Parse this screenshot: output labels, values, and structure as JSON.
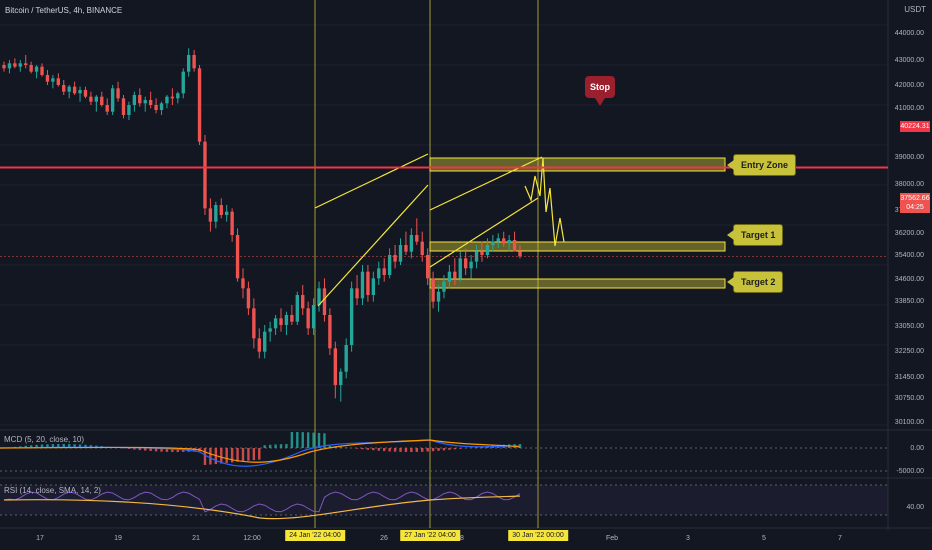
{
  "header": {
    "title": "Bitcoin / TetherUS, 4h, BINANCE",
    "currency": "USDT"
  },
  "price_axis": {
    "ticks": [
      "44000.00",
      "43000.00",
      "42000.00",
      "41000.00",
      "39000.00",
      "38000.00",
      "37000.00",
      "36200.00",
      "35400.00",
      "34600.00",
      "33850.00",
      "33050.00",
      "32250.00",
      "31450.00",
      "30750.00",
      "30100.00"
    ],
    "stop_level": "40224.31",
    "last_price": "37562.66",
    "countdown": "04:25"
  },
  "time_axis": {
    "ticks": [
      "17",
      "19",
      "21",
      "12:00",
      "26",
      "28",
      "Feb",
      "3",
      "5",
      "7"
    ],
    "highlighted": [
      "24 Jan '22  04:00",
      "27 Jan '22  04:00",
      "30 Jan '22  00:00"
    ]
  },
  "labels": {
    "stop": "Stop",
    "entry": "Entry Zone",
    "target1": "Target 1",
    "target2": "Target 2"
  },
  "indicators": {
    "macd_title": "MCD (5, 20, close, 10)",
    "macd_ticks": [
      "0.00",
      "-5000.00"
    ],
    "rsi_title": "RSI (14, close, SMA, 14, 2)",
    "rsi_ticks": [
      "40.00"
    ]
  },
  "colors": {
    "up": "#26a69a",
    "down": "#ef5350",
    "stop": "#f23645",
    "zone": "#f7e63a",
    "background": "#131722"
  },
  "chart_data": {
    "type": "candlestick",
    "title": "Bitcoin / TetherUS, 4h, BINANCE",
    "ylim": [
      32500,
      44500
    ],
    "candles": [
      [
        43300,
        43400,
        43100,
        43200
      ],
      [
        43200,
        43450,
        43050,
        43350
      ],
      [
        43350,
        43500,
        43200,
        43250
      ],
      [
        43250,
        43450,
        43100,
        43350
      ],
      [
        43350,
        43600,
        43200,
        43300
      ],
      [
        43300,
        43400,
        43050,
        43100
      ],
      [
        43100,
        43300,
        42900,
        43250
      ],
      [
        43250,
        43350,
        42950,
        43000
      ],
      [
        43000,
        43150,
        42700,
        42800
      ],
      [
        42800,
        43000,
        42600,
        42900
      ],
      [
        42900,
        43050,
        42650,
        42700
      ],
      [
        42700,
        42850,
        42400,
        42500
      ],
      [
        42500,
        42700,
        42300,
        42650
      ],
      [
        42650,
        42800,
        42400,
        42450
      ],
      [
        42450,
        42650,
        42200,
        42550
      ],
      [
        42550,
        42650,
        42300,
        42350
      ],
      [
        42350,
        42500,
        42100,
        42200
      ],
      [
        42200,
        42400,
        41900,
        42350
      ],
      [
        42350,
        42500,
        42050,
        42100
      ],
      [
        42100,
        42300,
        41800,
        41900
      ],
      [
        41900,
        42700,
        41800,
        42600
      ],
      [
        42600,
        42800,
        42200,
        42300
      ],
      [
        42300,
        42400,
        41700,
        41800
      ],
      [
        41800,
        42200,
        41650,
        42100
      ],
      [
        42100,
        42500,
        41900,
        42400
      ],
      [
        42400,
        42600,
        42050,
        42150
      ],
      [
        42150,
        42350,
        41900,
        42250
      ],
      [
        42250,
        42500,
        42000,
        42100
      ],
      [
        42100,
        42300,
        41850,
        41950
      ],
      [
        41950,
        42200,
        41800,
        42150
      ],
      [
        42150,
        42400,
        42000,
        42350
      ],
      [
        42350,
        42600,
        42100,
        42300
      ],
      [
        42300,
        42500,
        42150,
        42450
      ],
      [
        42450,
        43200,
        42300,
        43100
      ],
      [
        43100,
        43800,
        42950,
        43600
      ],
      [
        43600,
        43750,
        43100,
        43200
      ],
      [
        43200,
        43300,
        40900,
        41000
      ],
      [
        41000,
        41200,
        38800,
        39000
      ],
      [
        39000,
        39300,
        38300,
        38600
      ],
      [
        38600,
        39200,
        38400,
        39100
      ],
      [
        39100,
        39300,
        38700,
        38800
      ],
      [
        38800,
        39100,
        38600,
        38900
      ],
      [
        38900,
        39000,
        38000,
        38200
      ],
      [
        38200,
        38400,
        36800,
        36900
      ],
      [
        36900,
        37200,
        36300,
        36600
      ],
      [
        36600,
        36800,
        35800,
        36000
      ],
      [
        36000,
        36300,
        34800,
        35100
      ],
      [
        35100,
        35400,
        34500,
        34700
      ],
      [
        34700,
        35500,
        34500,
        35300
      ],
      [
        35300,
        35600,
        35000,
        35400
      ],
      [
        35400,
        35800,
        35200,
        35700
      ],
      [
        35700,
        36000,
        35300,
        35500
      ],
      [
        35500,
        35900,
        35200,
        35800
      ],
      [
        35800,
        36100,
        35500,
        35600
      ],
      [
        35600,
        36500,
        35500,
        36400
      ],
      [
        36400,
        36700,
        35800,
        36000
      ],
      [
        36000,
        36200,
        35200,
        35400
      ],
      [
        35400,
        36300,
        35200,
        36100
      ],
      [
        36100,
        36800,
        35900,
        36600
      ],
      [
        36600,
        36900,
        35600,
        35800
      ],
      [
        35800,
        36000,
        34600,
        34800
      ],
      [
        34800,
        35000,
        33300,
        33700
      ],
      [
        33700,
        34200,
        33200,
        34100
      ],
      [
        34100,
        35100,
        33900,
        34900
      ],
      [
        34900,
        36800,
        34700,
        36600
      ],
      [
        36600,
        37000,
        36100,
        36300
      ],
      [
        36300,
        37300,
        36100,
        37100
      ],
      [
        37100,
        37300,
        36200,
        36400
      ],
      [
        36400,
        37100,
        36200,
        36900
      ],
      [
        36900,
        37400,
        36700,
        37200
      ],
      [
        37200,
        37500,
        36800,
        37000
      ],
      [
        37000,
        37800,
        36900,
        37600
      ],
      [
        37600,
        37900,
        37200,
        37400
      ],
      [
        37400,
        38100,
        37300,
        37900
      ],
      [
        37900,
        38300,
        37600,
        37700
      ],
      [
        37700,
        38400,
        37500,
        38200
      ],
      [
        38200,
        38700,
        37900,
        38000
      ],
      [
        38000,
        38300,
        37400,
        37600
      ],
      [
        37600,
        37800,
        36700,
        36900
      ],
      [
        36900,
        37100,
        36000,
        36200
      ],
      [
        36200,
        36700,
        35900,
        36500
      ],
      [
        36500,
        37000,
        36300,
        36800
      ],
      [
        36800,
        37300,
        36600,
        37100
      ],
      [
        37100,
        37500,
        36700,
        36900
      ],
      [
        36900,
        37700,
        36800,
        37500
      ],
      [
        37500,
        37800,
        37000,
        37200
      ],
      [
        37200,
        37600,
        36900,
        37400
      ],
      [
        37400,
        37900,
        37200,
        37700
      ],
      [
        37700,
        38000,
        37400,
        37600
      ],
      [
        37600,
        38100,
        37500,
        37900
      ],
      [
        37900,
        38200,
        37700,
        38000
      ],
      [
        38000,
        38250,
        37800,
        38100
      ],
      [
        38100,
        38300,
        37850,
        37950
      ],
      [
        37950,
        38200,
        37700,
        38050
      ],
      [
        38050,
        38300,
        37800,
        37700
      ],
      [
        37700,
        37900,
        37500,
        37560
      ]
    ],
    "stop": 40224.31,
    "last_price": 37562.66,
    "zones": [
      {
        "label": "Entry Zone",
        "low": 38700,
        "high": 38900
      },
      {
        "label": "Target 1",
        "low": 35500,
        "high": 35700
      },
      {
        "label": "Target 2",
        "low": 34400,
        "high": 34600
      }
    ]
  }
}
